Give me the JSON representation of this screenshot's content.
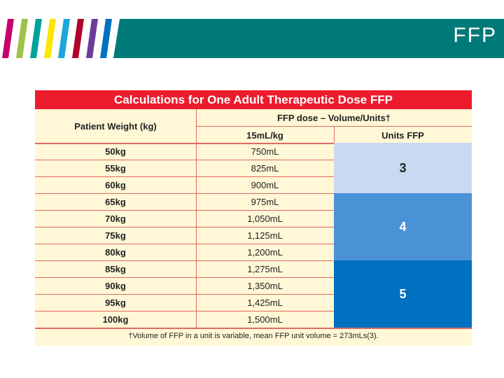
{
  "slide": {
    "title": "FFP",
    "accent": "#007a78",
    "stripe_colors": [
      "#c8006e",
      "#9dc34a",
      "#00a19a",
      "#ffe600",
      "#1ba6dc",
      "#b0002c",
      "#6a3d9a",
      "#0070c0"
    ]
  },
  "table": {
    "title": "Calculations for One Adult Therapeutic Dose FFP",
    "header": {
      "weight": "Patient Weight (kg)",
      "dose_group": "FFP dose – Volume/Units†",
      "volume": "15mL/kg",
      "units": "Units FFP"
    },
    "rows": [
      {
        "weight": "50kg",
        "volume": "750mL"
      },
      {
        "weight": "55kg",
        "volume": "825mL"
      },
      {
        "weight": "60kg",
        "volume": "900mL"
      },
      {
        "weight": "65kg",
        "volume": "975mL"
      },
      {
        "weight": "70kg",
        "volume": "1,050mL"
      },
      {
        "weight": "75kg",
        "volume": "1,125mL"
      },
      {
        "weight": "80kg",
        "volume": "1,200mL"
      },
      {
        "weight": "85kg",
        "volume": "1,275mL"
      },
      {
        "weight": "90kg",
        "volume": "1,350mL"
      },
      {
        "weight": "95kg",
        "volume": "1,425mL"
      },
      {
        "weight": "100kg",
        "volume": "1,500mL"
      }
    ],
    "units": [
      {
        "value": "3",
        "rows": 3,
        "color": "#c9d9f1",
        "text_color": "#222222"
      },
      {
        "value": "4",
        "rows": 4,
        "color": "#4a92d6",
        "text_color": "#ffffff"
      },
      {
        "value": "5",
        "rows": 4,
        "color": "#0070c0",
        "text_color": "#ffffff"
      }
    ],
    "footnote": "†Volume of FFP in a unit is variable, mean FFP unit volume = 273mLs(3)."
  }
}
